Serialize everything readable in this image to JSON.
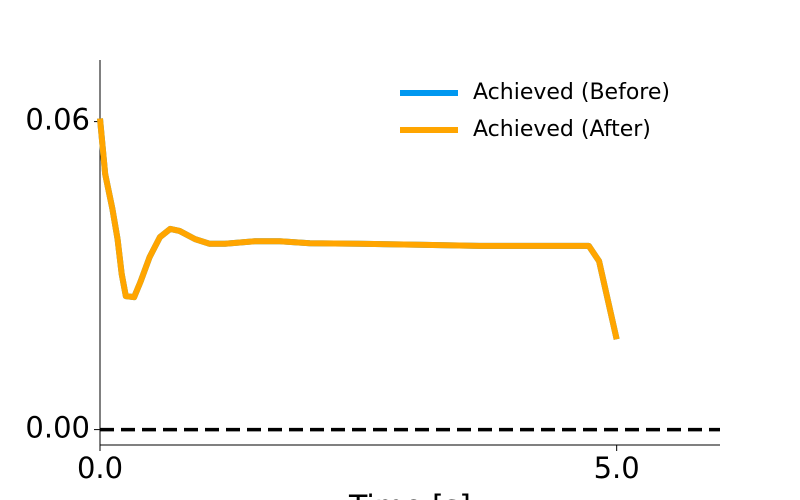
{
  "chart_data": {
    "type": "line",
    "xlabel": "Time [s]",
    "x": [
      0,
      0.05,
      0.12,
      0.17,
      0.21,
      0.25,
      0.33,
      0.39,
      0.48,
      0.58,
      0.68,
      0.77,
      0.92,
      1.06,
      1.21,
      1.5,
      1.74,
      2.03,
      2.51,
      3.09,
      3.67,
      4.25,
      4.73,
      4.83,
      5.0
    ],
    "series": [
      {
        "name": "Achieved (Before)",
        "color": "#0098f0",
        "values": [
          0.0606,
          0.0498,
          0.043,
          0.0371,
          0.0303,
          0.026,
          0.0258,
          0.0287,
          0.0336,
          0.0375,
          0.0391,
          0.0387,
          0.0371,
          0.0362,
          0.0362,
          0.0367,
          0.0367,
          0.0363,
          0.0362,
          0.036,
          0.0358,
          0.0358,
          0.0358,
          0.0328,
          0.0176
        ]
      },
      {
        "name": "Achieved (After)",
        "color": "#ffa500",
        "values": [
          0.0606,
          0.0498,
          0.043,
          0.0371,
          0.0303,
          0.026,
          0.0258,
          0.0287,
          0.0336,
          0.0375,
          0.0391,
          0.0387,
          0.0371,
          0.0362,
          0.0362,
          0.0367,
          0.0367,
          0.0363,
          0.0362,
          0.036,
          0.0358,
          0.0358,
          0.0358,
          0.0328,
          0.0176
        ]
      }
    ],
    "reference_line": {
      "value": 0,
      "color": "#000000"
    },
    "xlim": [
      0,
      6
    ],
    "xticks": [
      {
        "value": 0,
        "label": "0.0"
      },
      {
        "value": 5,
        "label": "5.0"
      }
    ],
    "ylim": [
      -0.003,
      0.072
    ],
    "yticks": [
      {
        "value": 0,
        "label": "0.00"
      },
      0.06
    ],
    "legend": "upper right"
  }
}
